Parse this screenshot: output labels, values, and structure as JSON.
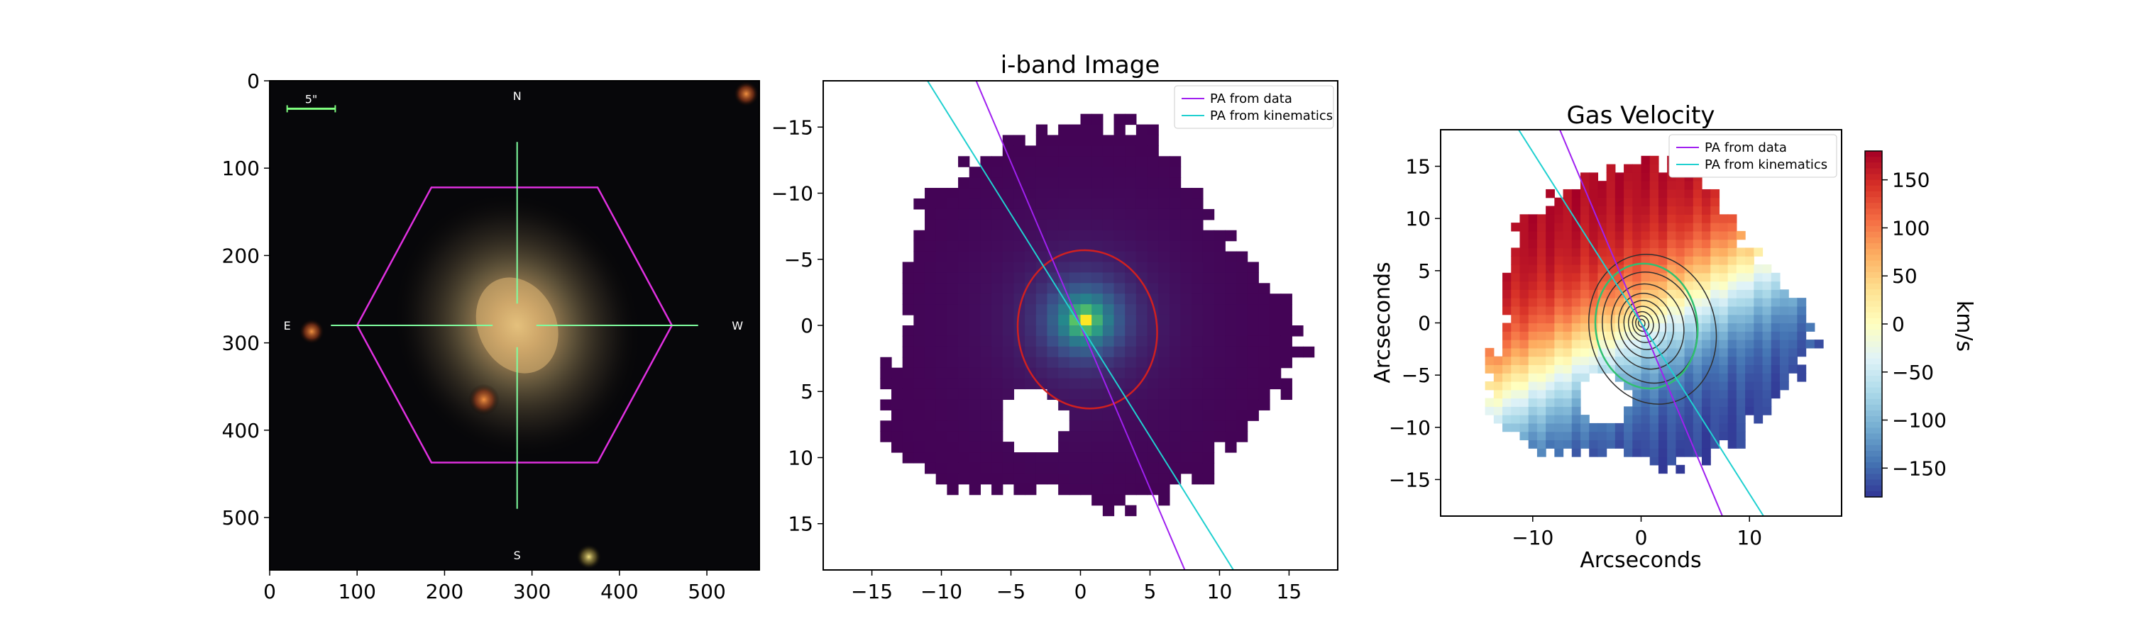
{
  "colors": {
    "pa_data": "#a020f0",
    "pa_kinematics": "#20d0d0",
    "hexagon": "#e030e0",
    "crosshair": "#80ffa0",
    "ellipse_red": "#d02020",
    "ellipse_green": "#30c070",
    "contour": "#303030",
    "scalebar": "#80ff80"
  },
  "chart_data": [
    {
      "type": "image",
      "panel": "optical-image",
      "title": "",
      "xlabel": "",
      "ylabel": "",
      "xlim": [
        0,
        560
      ],
      "ylim": [
        560,
        0
      ],
      "xticks": [
        "0",
        "100",
        "200",
        "300",
        "400",
        "500"
      ],
      "yticks": [
        "0",
        "100",
        "200",
        "300",
        "400",
        "500"
      ],
      "xtick_values": [
        0,
        100,
        200,
        300,
        400,
        500
      ],
      "ytick_values": [
        0,
        100,
        200,
        300,
        400,
        500
      ],
      "compass": {
        "north": "N",
        "south": "S",
        "east": "E",
        "west": "W"
      },
      "scale_bar_label": "5\"",
      "galaxy_center": [
        283,
        280
      ],
      "hexagon_vertices": [
        [
          185,
          122
        ],
        [
          375,
          122
        ],
        [
          460,
          280
        ],
        [
          375,
          437
        ],
        [
          185,
          437
        ],
        [
          100,
          280
        ]
      ],
      "crosshair": {
        "x_range": [
          70,
          490
        ],
        "y_range": [
          70,
          490
        ],
        "gap_from": [
          255,
          305
        ]
      },
      "point_sources": [
        [
          48,
          287
        ],
        [
          245,
          365
        ],
        [
          545,
          15
        ],
        [
          365,
          545
        ]
      ]
    },
    {
      "type": "heatmap",
      "panel": "i-band",
      "title": "i-band Image",
      "xlabel": "",
      "ylabel": "",
      "xlim": [
        -18.5,
        18.5
      ],
      "ylim": [
        18.5,
        -18.5
      ],
      "xticks": [
        "−15",
        "−10",
        "−5",
        "0",
        "5",
        "10",
        "15"
      ],
      "yticks": [
        "−15",
        "−10",
        "−5",
        "0",
        "5",
        "10",
        "15"
      ],
      "xtick_values": [
        -15,
        -10,
        -5,
        0,
        5,
        10,
        15
      ],
      "ytick_values": [
        -15,
        -10,
        -5,
        0,
        5,
        10,
        15
      ],
      "peak": [
        0.3,
        -0.4
      ],
      "legend": {
        "placement": "top-right",
        "entries": [
          "PA from data",
          "PA from kinematics"
        ]
      },
      "pa_lines": [
        {
          "name": "PA from data",
          "points": [
            [
              -7.5,
              -18.5
            ],
            [
              7.5,
              18.5
            ]
          ]
        },
        {
          "name": "PA from kinematics",
          "points": [
            [
              -11,
              -18.5
            ],
            [
              11,
              18.5
            ]
          ]
        }
      ],
      "ellipse": {
        "cx": 0.5,
        "cy": 0.3,
        "rx": 5.0,
        "ry": 6.0,
        "angle_deg": -8
      },
      "mask_hole": {
        "cx": -3.5,
        "cy": 7.3,
        "r": 2.5
      }
    },
    {
      "type": "heatmap",
      "panel": "gas-velocity",
      "title": "Gas Velocity",
      "xlabel": "Arcseconds",
      "ylabel": "Arcseconds",
      "xlim": [
        -18.5,
        18.5
      ],
      "ylim": [
        -18.5,
        18.5
      ],
      "xticks": [
        "−10",
        "0",
        "10"
      ],
      "yticks": [
        "15",
        "10",
        "5",
        "0",
        "−5",
        "−10",
        "−15"
      ],
      "xtick_values": [
        -10,
        0,
        10
      ],
      "ytick_values": [
        15,
        10,
        5,
        0,
        -5,
        -10,
        -15
      ],
      "colorbar": {
        "label": "km/s",
        "range": [
          -180,
          180
        ],
        "ticks": [
          "150",
          "100",
          "50",
          "0",
          "−50",
          "−100",
          "−150"
        ],
        "tick_values": [
          150,
          100,
          50,
          0,
          -50,
          -100,
          -150
        ],
        "colormap": "RdYlBu_r"
      },
      "legend": {
        "placement": "top-right",
        "entries": [
          "PA from data",
          "PA from kinematics"
        ]
      },
      "pa_lines": [
        {
          "name": "PA from data",
          "points": [
            [
              -7.5,
              18.5
            ],
            [
              7.5,
              -18.5
            ]
          ]
        },
        {
          "name": "PA from kinematics",
          "points": [
            [
              -11.3,
              18.5
            ],
            [
              11.3,
              -18.5
            ]
          ]
        }
      ],
      "ellipse": {
        "cx": 0.5,
        "cy": -0.3,
        "rx": 4.7,
        "ry": 6.0,
        "angle_deg": -8
      },
      "contour_rx": [
        5.8,
        4.3,
        3.3,
        2.5,
        1.9,
        1.4,
        0.95,
        0.6,
        0.3
      ],
      "mask_hole": {
        "cx": -3.5,
        "cy": -7.3,
        "r": 2.5
      },
      "velocity_model": {
        "pa_deg": 152,
        "vmax": 175
      }
    }
  ]
}
